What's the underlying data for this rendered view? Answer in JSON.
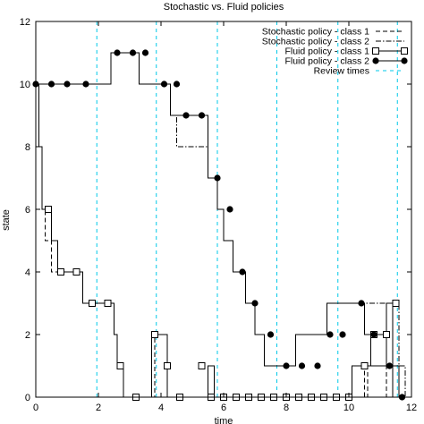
{
  "chart_data": {
    "type": "line",
    "title": "Stochastic vs. Fluid policies",
    "xlabel": "time",
    "ylabel": "state",
    "xlim": [
      0,
      12
    ],
    "ylim": [
      0,
      12
    ],
    "xticks": [
      "0",
      "2",
      "4",
      "6",
      "8",
      "10",
      "12"
    ],
    "yticks": [
      "0",
      "2",
      "4",
      "6",
      "8",
      "10",
      "12"
    ],
    "grid": false,
    "legend_position": "top-right",
    "colors": {
      "lines": "#000000",
      "review": "#00c8e8",
      "background": "#ffffff"
    },
    "review_times": [
      1.95,
      3.85,
      5.8,
      7.7,
      9.65,
      11.55
    ],
    "series": [
      {
        "name": "Stochastic policy - class 1",
        "style": "dashed",
        "marker": "none",
        "x": [
          0,
          0.1,
          0.1,
          0.2,
          0.2,
          0.3,
          0.3,
          0.5,
          0.5,
          0.7,
          0.7,
          0.9,
          0.9,
          1.5,
          1.5,
          1.7,
          1.7,
          2.5,
          2.5,
          2.6,
          2.6,
          2.8,
          2.8,
          3.0,
          3.0,
          3.4,
          3.4,
          3.8,
          3.8,
          4.2,
          4.2,
          4.4,
          4.4,
          5.5,
          5.5,
          5.7,
          5.7,
          10.1,
          10.1,
          10.5,
          10.5,
          10.6,
          10.6,
          11.2,
          11.2,
          11.6,
          11.6,
          12
        ],
        "y": [
          10,
          10,
          8,
          8,
          6,
          6,
          5,
          5,
          4,
          4,
          4,
          4,
          4,
          4,
          3,
          3,
          3,
          3,
          2,
          2,
          1,
          1,
          0,
          0,
          0,
          0,
          0,
          0,
          2,
          2,
          0,
          0,
          0,
          0,
          1,
          1,
          0,
          0,
          1,
          1,
          0,
          0,
          1,
          1,
          0,
          0,
          0,
          0
        ]
      },
      {
        "name": "Stochastic policy - class 2",
        "style": "dashdot",
        "marker": "none",
        "x": [
          0,
          2.4,
          2.4,
          3.3,
          3.3,
          4.3,
          4.3,
          4.5,
          4.5,
          4.7,
          4.7,
          5.5,
          5.5,
          5.8,
          5.8,
          6.0,
          6.0,
          6.3,
          6.3,
          6.7,
          6.7,
          7.0,
          7.0,
          7.3,
          7.3,
          7.7,
          7.7,
          8.3,
          8.3,
          9.3,
          9.3,
          9.7,
          9.7,
          11.6,
          11.6,
          11.8,
          11.8,
          12
        ],
        "y": [
          10,
          10,
          11,
          11,
          10,
          10,
          9,
          9,
          8,
          8,
          8,
          8,
          7,
          7,
          6,
          6,
          5,
          5,
          4,
          4,
          3,
          3,
          2,
          2,
          1,
          1,
          1,
          1,
          2,
          2,
          3,
          3,
          3,
          3,
          1,
          1,
          0,
          0
        ]
      },
      {
        "name": "Fluid policy - class 1",
        "style": "solid",
        "marker": "open-square",
        "x": [
          0,
          0.1,
          0.1,
          0.2,
          0.2,
          0.5,
          0.5,
          0.7,
          0.7,
          0.9,
          0.9,
          1.5,
          1.5,
          1.7,
          1.7,
          2.5,
          2.5,
          2.6,
          2.6,
          2.8,
          2.8,
          3.0,
          3.0,
          3.7,
          3.7,
          3.9,
          3.9,
          4.2,
          4.2,
          4.4,
          4.4,
          5.5,
          5.5,
          5.7,
          5.7,
          10.1,
          10.1,
          10.5,
          10.5,
          10.7,
          10.7,
          11.2,
          11.2,
          11.4,
          11.4,
          11.6,
          11.6,
          12
        ],
        "y": [
          10,
          10,
          8,
          8,
          6,
          6,
          5,
          5,
          4,
          4,
          4,
          4,
          3,
          3,
          3,
          3,
          2,
          2,
          1,
          1,
          0,
          0,
          0,
          0,
          2,
          2,
          2,
          2,
          0,
          0,
          0,
          0,
          1,
          1,
          0,
          0,
          1,
          1,
          1,
          1,
          2,
          2,
          3,
          3,
          1,
          1,
          0,
          0
        ]
      },
      {
        "name": "Fluid policy - class 2",
        "style": "solid",
        "marker": "filled-circle",
        "x": [
          0,
          2.4,
          2.4,
          3.3,
          3.3,
          4.3,
          4.3,
          4.5,
          4.5,
          5.5,
          5.5,
          5.8,
          5.8,
          6.0,
          6.0,
          6.3,
          6.3,
          6.7,
          6.7,
          7.0,
          7.0,
          7.3,
          7.3,
          7.7,
          7.7,
          8.3,
          8.3,
          9.3,
          9.3,
          9.7,
          9.7,
          10.5,
          10.5,
          10.7,
          10.7,
          11.2,
          11.2,
          11.4,
          11.4,
          11.6,
          11.6,
          12
        ],
        "y": [
          10,
          10,
          11,
          11,
          10,
          10,
          9,
          9,
          9,
          9,
          7,
          7,
          6,
          6,
          5,
          5,
          4,
          4,
          3,
          3,
          2,
          2,
          1,
          1,
          1,
          1,
          2,
          2,
          3,
          3,
          3,
          3,
          2,
          2,
          1,
          1,
          3,
          3,
          0,
          0,
          0,
          0
        ]
      },
      {
        "name": "Review times",
        "style": "dashed-review",
        "marker": "none"
      }
    ],
    "markers": {
      "open_square": [
        [
          0.4,
          6
        ],
        [
          0.8,
          4
        ],
        [
          1.3,
          4
        ],
        [
          1.8,
          3
        ],
        [
          2.3,
          3
        ],
        [
          2.7,
          1
        ],
        [
          3.2,
          0
        ],
        [
          3.8,
          2
        ],
        [
          4.2,
          1
        ],
        [
          4.6,
          0
        ],
        [
          5.3,
          1
        ],
        [
          5.6,
          0
        ],
        [
          6.0,
          0
        ],
        [
          6.4,
          0
        ],
        [
          6.8,
          0
        ],
        [
          7.2,
          0
        ],
        [
          7.6,
          0
        ],
        [
          8.0,
          0
        ],
        [
          8.4,
          0
        ],
        [
          8.8,
          0
        ],
        [
          9.2,
          0
        ],
        [
          9.6,
          0
        ],
        [
          10.0,
          0
        ],
        [
          10.5,
          1
        ],
        [
          10.8,
          2
        ],
        [
          11.2,
          2
        ],
        [
          11.5,
          3
        ]
      ],
      "filled_circle": [
        [
          0,
          10
        ],
        [
          0.5,
          10
        ],
        [
          1.0,
          10
        ],
        [
          1.6,
          10
        ],
        [
          2.6,
          11
        ],
        [
          3.1,
          11
        ],
        [
          3.5,
          11
        ],
        [
          4.1,
          10
        ],
        [
          4.5,
          10
        ],
        [
          4.8,
          9
        ],
        [
          5.3,
          9
        ],
        [
          5.8,
          7
        ],
        [
          6.2,
          6
        ],
        [
          6.6,
          4
        ],
        [
          7.0,
          3
        ],
        [
          7.5,
          2
        ],
        [
          8.0,
          1
        ],
        [
          8.5,
          1
        ],
        [
          9.0,
          1
        ],
        [
          9.4,
          2
        ],
        [
          9.8,
          2
        ],
        [
          10.4,
          3
        ],
        [
          10.8,
          2
        ],
        [
          11.3,
          1
        ],
        [
          11.7,
          0
        ]
      ]
    }
  }
}
